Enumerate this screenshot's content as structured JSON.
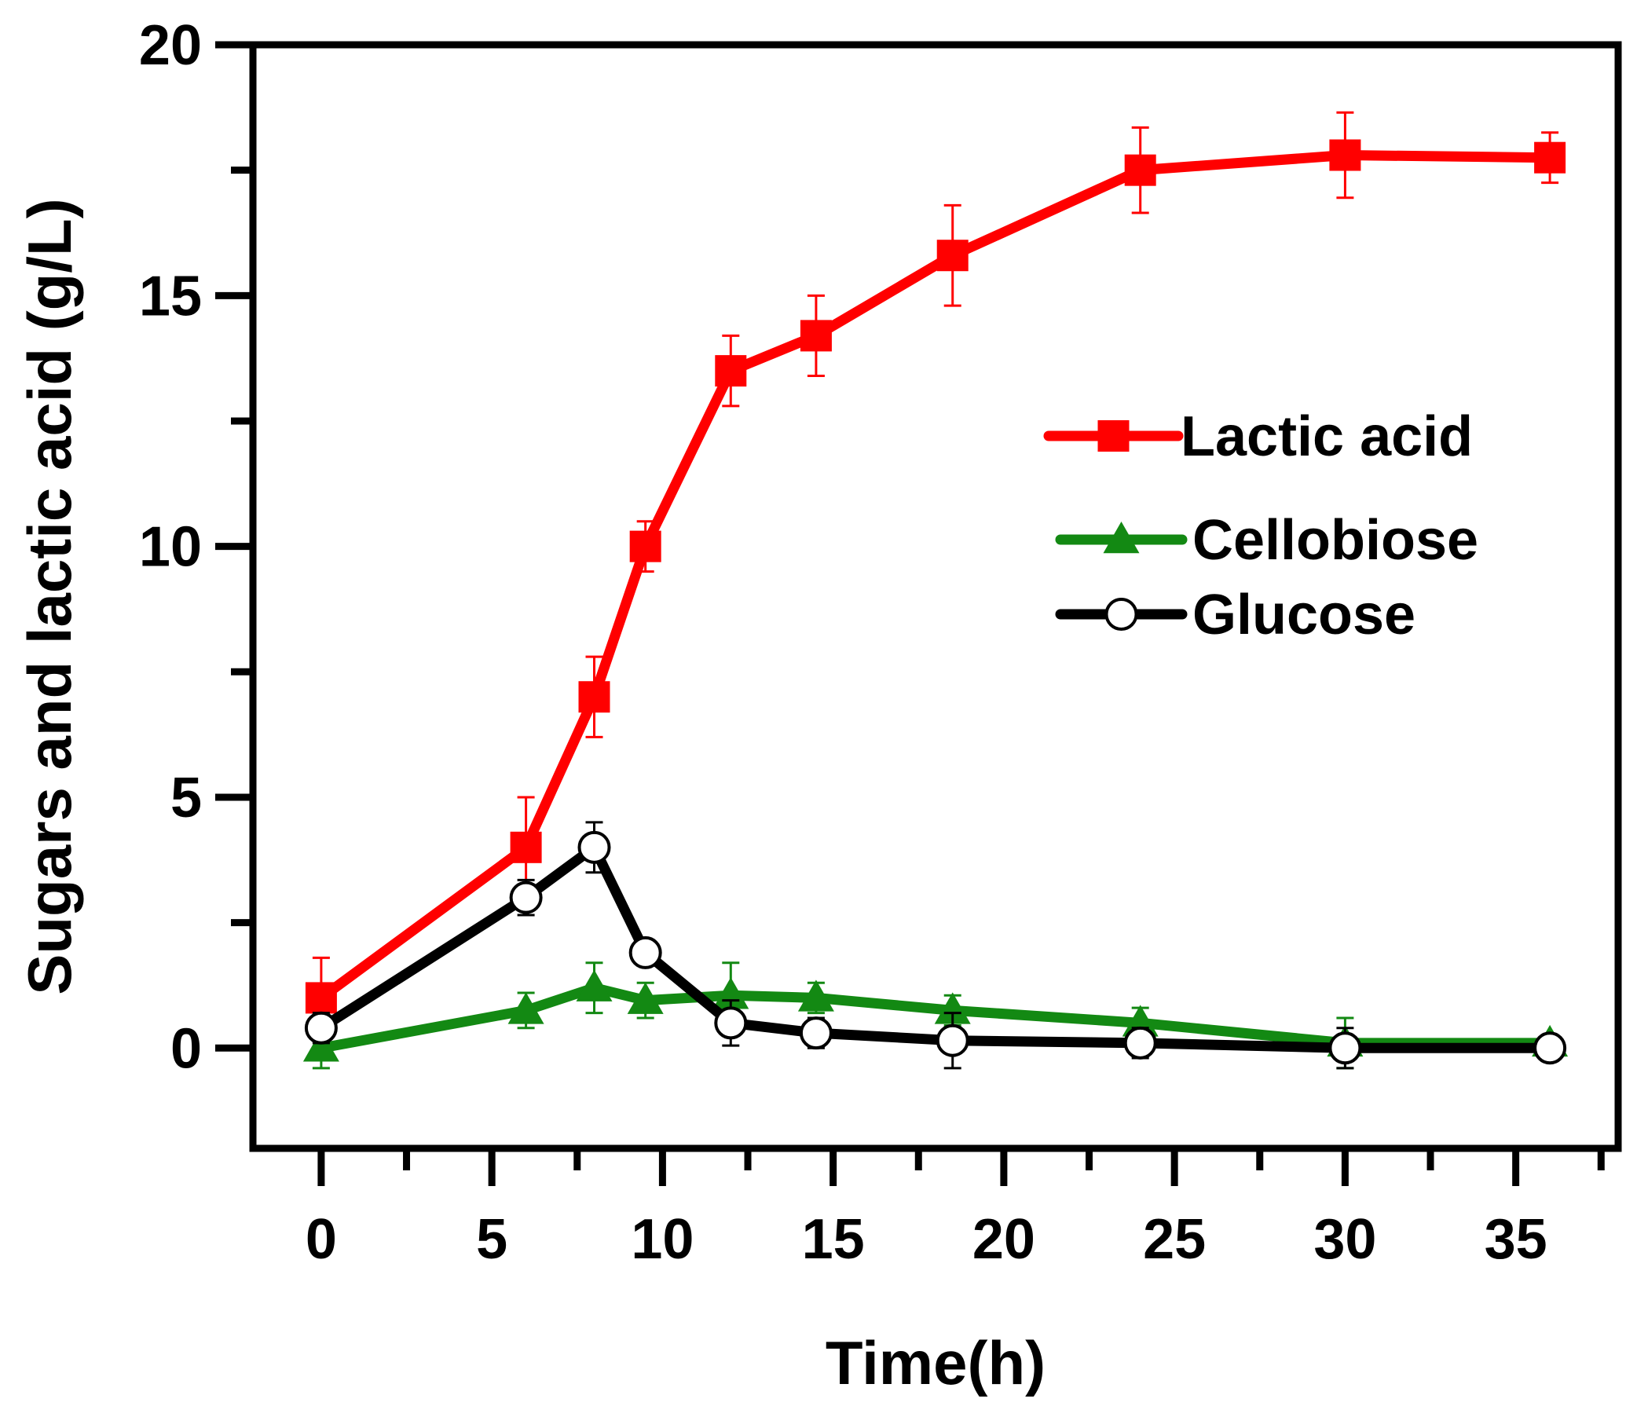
{
  "chart_data": {
    "type": "line",
    "title": "",
    "xlabel": "Time(h)",
    "ylabel": "Sugars and lactic acid (g/L)",
    "xlim": [
      -2,
      38
    ],
    "ylim": [
      -2,
      20
    ],
    "xticks": [
      0,
      5,
      10,
      15,
      20,
      25,
      30,
      35
    ],
    "yticks": [
      0,
      5,
      10,
      15,
      20
    ],
    "xtick_labels": [
      "0",
      "5",
      "10",
      "15",
      "20",
      "25",
      "30",
      "35"
    ],
    "ytick_labels": [
      "0",
      "5",
      "10",
      "15",
      "20"
    ],
    "grid": false,
    "legend_position": "center-right",
    "series": [
      {
        "name": "Lactic acid",
        "color": "#ff0000",
        "marker": "square",
        "x": [
          0,
          6,
          8,
          9.5,
          12,
          14.5,
          18.5,
          24,
          30,
          36
        ],
        "y": [
          1.0,
          4.0,
          7.0,
          10.0,
          13.5,
          14.2,
          15.8,
          17.5,
          17.8,
          17.75
        ],
        "err": [
          0.8,
          1.0,
          0.8,
          0.5,
          0.7,
          0.8,
          1.0,
          0.85,
          0.85,
          0.5
        ]
      },
      {
        "name": "Cellobiose",
        "color": "#138913",
        "marker": "triangle",
        "x": [
          0,
          6,
          8,
          9.5,
          12,
          14.5,
          18.5,
          24,
          30,
          36
        ],
        "y": [
          0.0,
          0.75,
          1.2,
          0.95,
          1.05,
          1.0,
          0.75,
          0.5,
          0.1,
          0.1
        ],
        "err": [
          0.4,
          0.35,
          0.5,
          0.35,
          0.65,
          0.3,
          0.3,
          0.3,
          0.5,
          0.15
        ]
      },
      {
        "name": "Glucose",
        "color": "#000000",
        "marker": "circle-open",
        "x": [
          0,
          6,
          8,
          9.5,
          12,
          14.5,
          18.5,
          24,
          30,
          36
        ],
        "y": [
          0.4,
          3.0,
          4.0,
          1.9,
          0.5,
          0.3,
          0.15,
          0.1,
          0.0,
          0.0
        ],
        "err": [
          0.3,
          0.35,
          0.5,
          0.25,
          0.45,
          0.3,
          0.55,
          0.3,
          0.4,
          0.1
        ]
      }
    ]
  }
}
